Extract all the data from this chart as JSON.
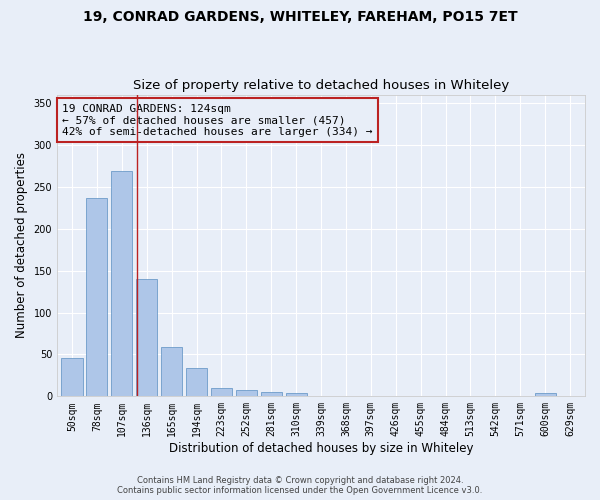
{
  "title1": "19, CONRAD GARDENS, WHITELEY, FAREHAM, PO15 7ET",
  "title2": "Size of property relative to detached houses in Whiteley",
  "xlabel": "Distribution of detached houses by size in Whiteley",
  "ylabel": "Number of detached properties",
  "footer1": "Contains HM Land Registry data © Crown copyright and database right 2024.",
  "footer2": "Contains public sector information licensed under the Open Government Licence v3.0.",
  "bar_labels": [
    "50sqm",
    "78sqm",
    "107sqm",
    "136sqm",
    "165sqm",
    "194sqm",
    "223sqm",
    "252sqm",
    "281sqm",
    "310sqm",
    "339sqm",
    "368sqm",
    "397sqm",
    "426sqm",
    "455sqm",
    "484sqm",
    "513sqm",
    "542sqm",
    "571sqm",
    "600sqm",
    "629sqm"
  ],
  "bar_values": [
    46,
    237,
    269,
    140,
    59,
    34,
    10,
    8,
    5,
    4,
    0,
    0,
    0,
    0,
    0,
    0,
    0,
    0,
    0,
    4,
    0
  ],
  "bar_color": "#aec6e8",
  "bar_edge_color": "#5a8fc2",
  "annotation_line1": "19 CONRAD GARDENS: 124sqm",
  "annotation_line2": "← 57% of detached houses are smaller (457)",
  "annotation_line3": "42% of semi-detached houses are larger (334) →",
  "vline_x": 2.62,
  "vline_color": "#bb2222",
  "box_color": "#bb2222",
  "ylim": [
    0,
    360
  ],
  "yticks": [
    0,
    50,
    100,
    150,
    200,
    250,
    300,
    350
  ],
  "bg_color": "#e8eef8",
  "grid_color": "#ffffff",
  "title1_fontsize": 10,
  "title2_fontsize": 9.5,
  "annotation_fontsize": 8,
  "axis_label_fontsize": 8.5,
  "tick_fontsize": 7,
  "footer_fontsize": 6,
  "figwidth": 6.0,
  "figheight": 5.0,
  "dpi": 100
}
